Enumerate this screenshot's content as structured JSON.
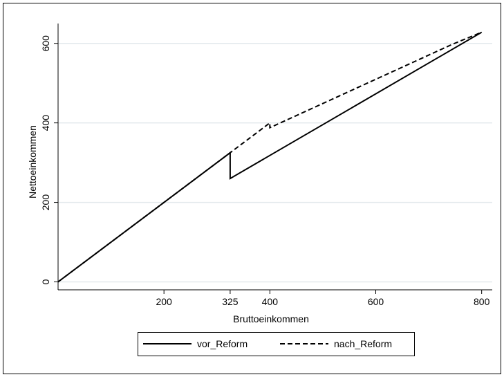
{
  "chart_data": {
    "type": "line",
    "title": "",
    "xlabel": "Bruttoeinkommen",
    "ylabel": "Nettoeinkommen",
    "xlim": [
      0,
      820
    ],
    "ylim": [
      -20,
      650
    ],
    "x_ticks": [
      200,
      325,
      400,
      600,
      800
    ],
    "x_tick_labels": [
      "200",
      "325",
      "400",
      "600",
      "800"
    ],
    "y_ticks": [
      0,
      200,
      400,
      600
    ],
    "y_tick_labels": [
      "0",
      "200",
      "400",
      "600"
    ],
    "grid": "horizontal",
    "legend_position": "bottom",
    "series": [
      {
        "name": "vor_Reform",
        "style": "solid",
        "color": "#000000",
        "points": [
          [
            0,
            0
          ],
          [
            325,
            325
          ],
          [
            325,
            260
          ],
          [
            800,
            628
          ]
        ]
      },
      {
        "name": "nach_Reform",
        "style": "dashed",
        "color": "#000000",
        "points": [
          [
            0,
            0
          ],
          [
            325,
            325
          ],
          [
            400,
            400
          ],
          [
            400,
            388
          ],
          [
            745,
            598
          ],
          [
            800,
            628
          ]
        ]
      }
    ]
  },
  "colors": {
    "background": "#ffffff",
    "gridline": "#e3e9ec",
    "line": "#000000"
  }
}
